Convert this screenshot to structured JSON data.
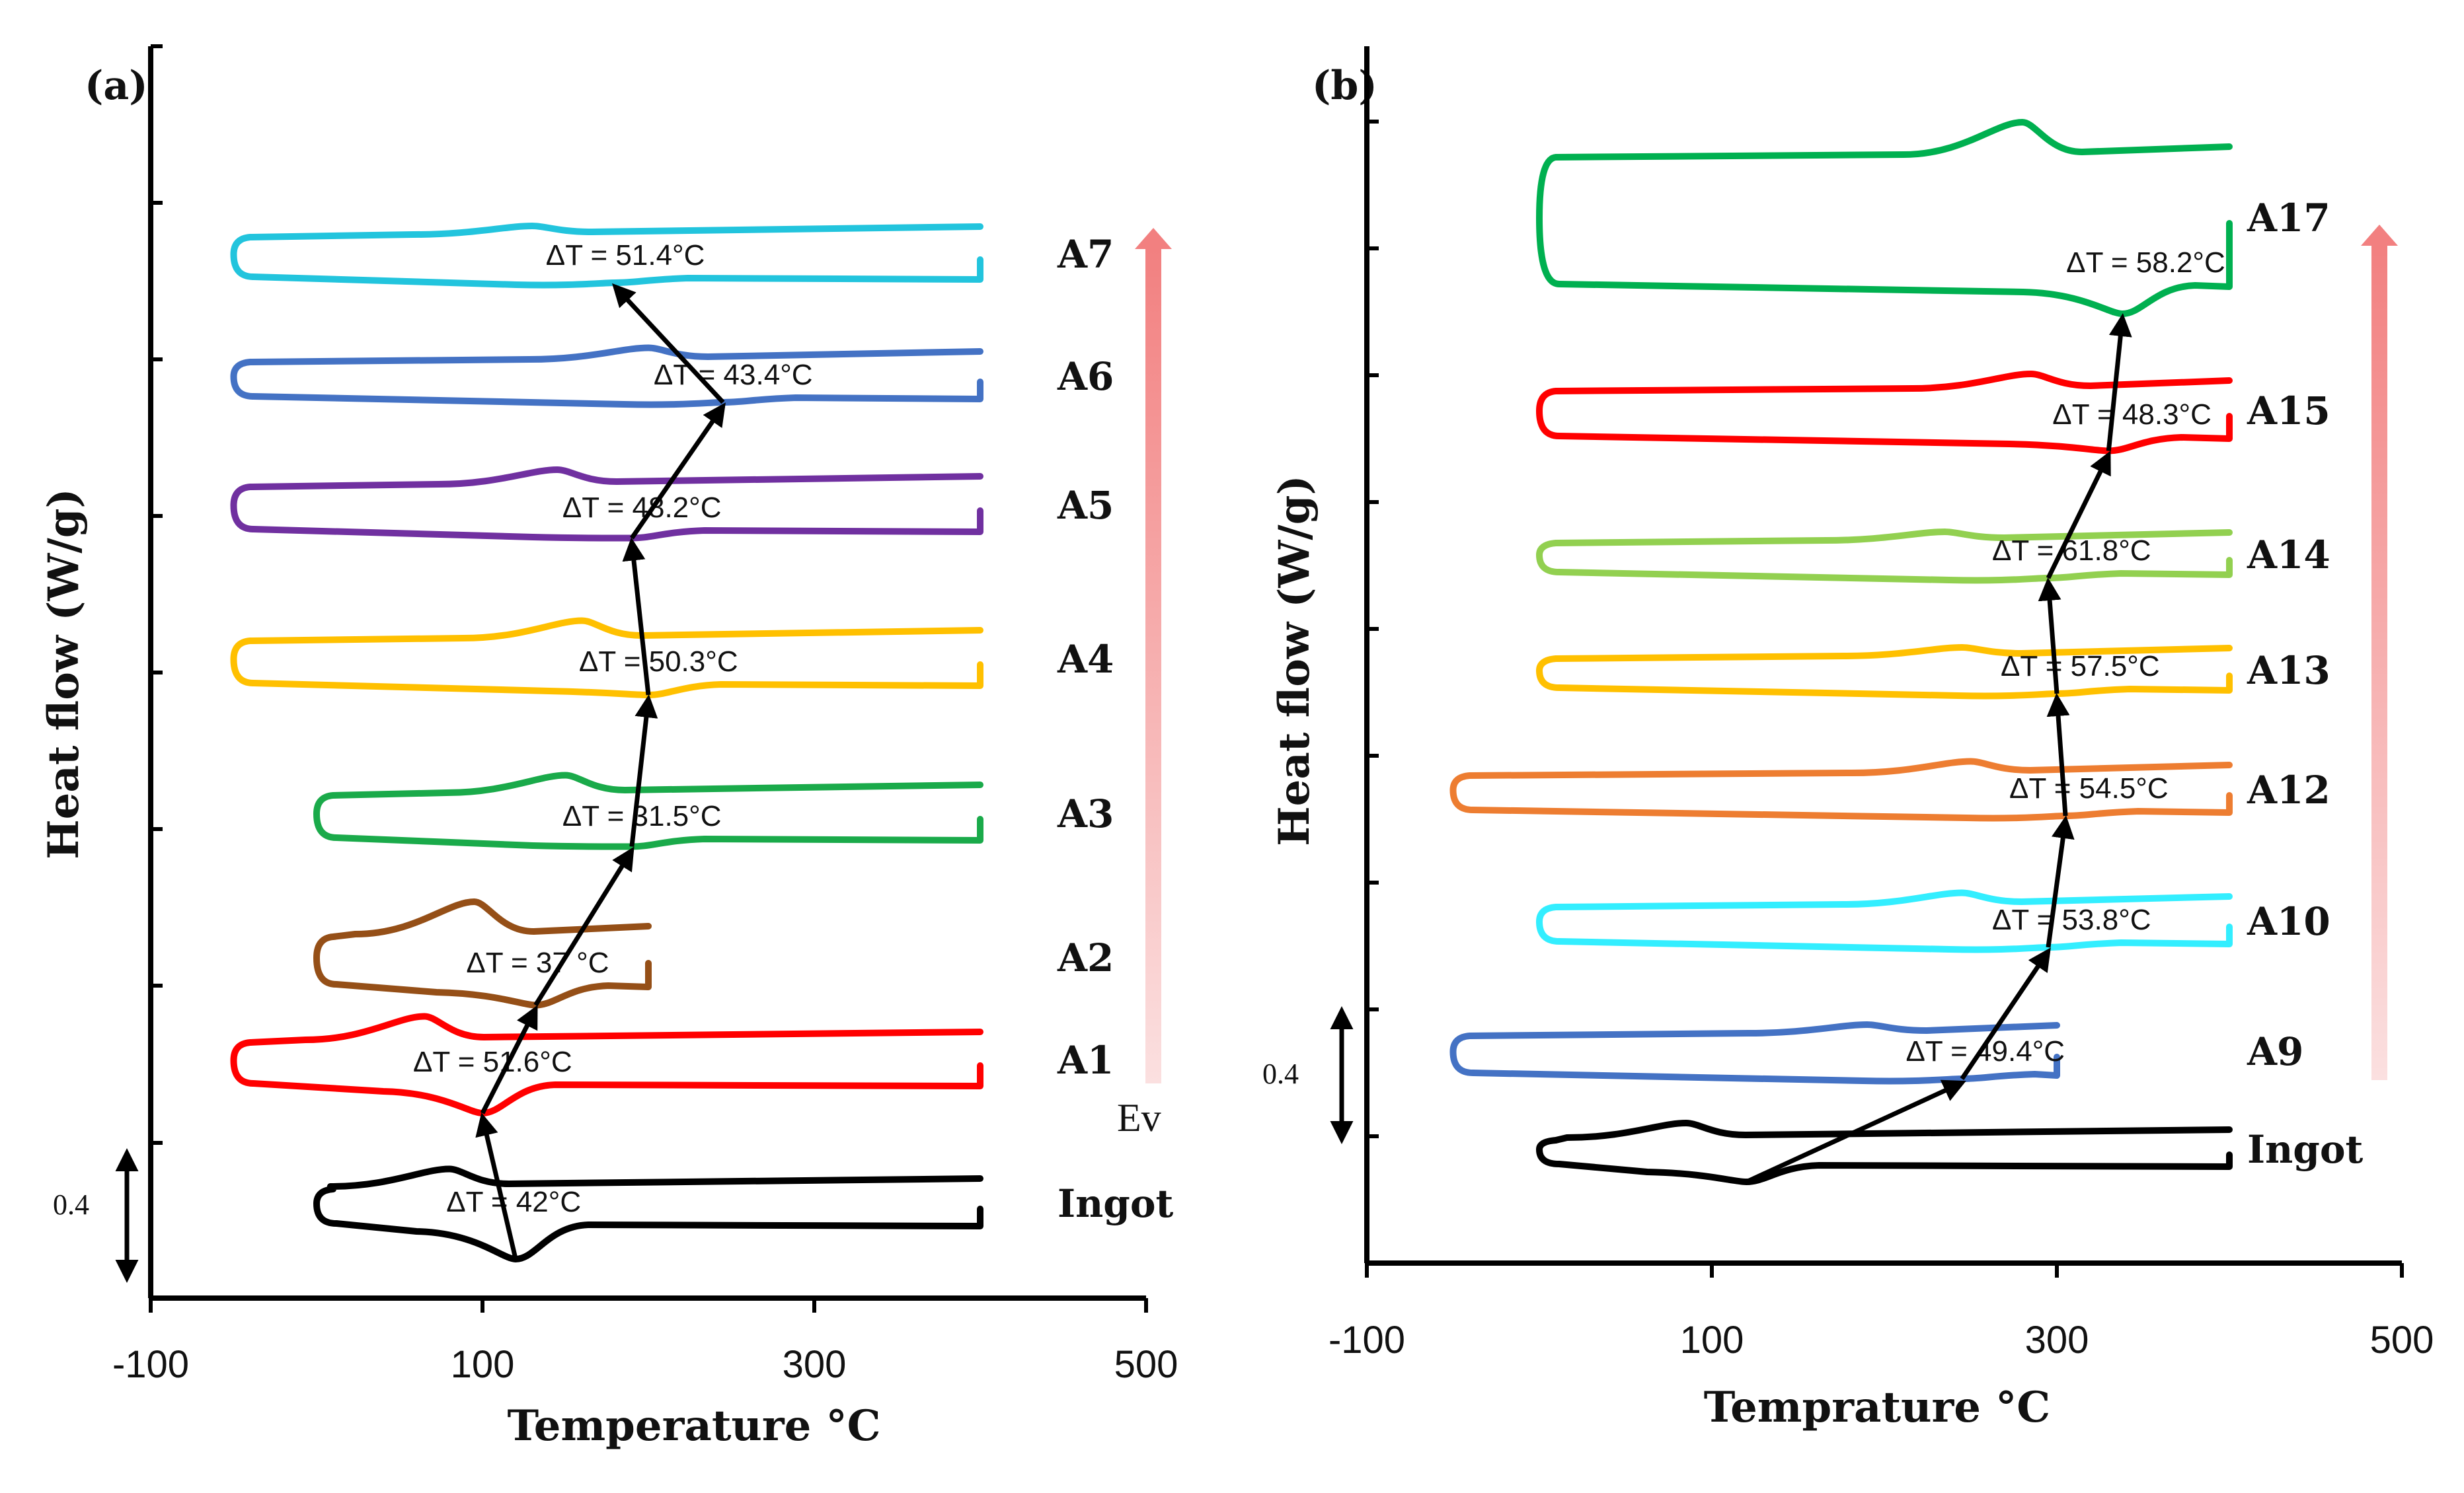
{
  "chart_data": [
    {
      "type": "line",
      "panel": "(a)",
      "xlabel": "Temperature °C",
      "ylabel": "Heat flow (W/g)",
      "xlim": [
        -100,
        500
      ],
      "xticks": [
        "-100",
        "100",
        "300",
        "500"
      ],
      "scale_bar": "0.4",
      "gradient_label": "Ev",
      "series": [
        {
          "name": "Ingot",
          "color": "#000000",
          "x_start": 0,
          "x_end": 400,
          "peak_heat": 80,
          "peak_cool": 120,
          "delta_t": "ΔT = 42°C",
          "heat_amp": 0.25,
          "cool_amp": 0.6
        },
        {
          "name": "A1",
          "color": "#ff0000",
          "x_start": -50,
          "x_end": 400,
          "peak_heat": 65,
          "peak_cool": 100,
          "delta_t": "ΔT = 51.6°C",
          "heat_amp": 0.35,
          "cool_amp": 0.5
        },
        {
          "name": "A2",
          "color": "#954f17",
          "x_start": 0,
          "x_end": 200,
          "peak_heat": 95,
          "peak_cool": 132,
          "delta_t": "ΔT = 37 °C",
          "heat_amp": 0.5,
          "cool_amp": 0.35
        },
        {
          "name": "A3",
          "color": "#1aaa4a",
          "x_start": 0,
          "x_end": 400,
          "peak_heat": 150,
          "peak_cool": 190,
          "delta_t": "ΔT = 31.5°C",
          "heat_amp": 0.25,
          "cool_amp": 0.15
        },
        {
          "name": "A4",
          "color": "#ffc000",
          "x_start": -50,
          "x_end": 400,
          "peak_heat": 160,
          "peak_cool": 200,
          "delta_t": "ΔT = 50.3°C",
          "heat_amp": 0.25,
          "cool_amp": 0.2
        },
        {
          "name": "A5",
          "color": "#7030a0",
          "x_start": -50,
          "x_end": 400,
          "peak_heat": 145,
          "peak_cool": 190,
          "delta_t": "ΔT = 48.2°C",
          "heat_amp": 0.2,
          "cool_amp": 0.15
        },
        {
          "name": "A6",
          "color": "#4472c4",
          "x_start": -50,
          "x_end": 400,
          "peak_heat": 200,
          "peak_cool": 245,
          "delta_t": "ΔT = 43.4°C",
          "heat_amp": 0.15,
          "cool_amp": 0.1
        },
        {
          "name": "A7",
          "color": "#22c4dd",
          "x_start": -50,
          "x_end": 400,
          "peak_heat": 130,
          "peak_cool": 180,
          "delta_t": "ΔT = 51.4°C",
          "heat_amp": 0.1,
          "cool_amp": 0.1
        }
      ]
    },
    {
      "type": "line",
      "panel": "(b)",
      "xlabel": "Temprature °C",
      "ylabel": "Heat flow (W/g)",
      "xlim": [
        -100,
        500
      ],
      "xticks": [
        "-100",
        "100",
        "300",
        "500"
      ],
      "scale_bar": "0.4",
      "series": [
        {
          "name": "Ingot",
          "color": "#000000",
          "x_start": 0,
          "x_end": 400,
          "peak_heat": 85,
          "peak_cool": 120,
          "delta_t": "",
          "heat_amp": 0.2,
          "cool_amp": 0.3
        },
        {
          "name": "A9",
          "color": "#4472c4",
          "x_start": -50,
          "x_end": 300,
          "peak_heat": 190,
          "peak_cool": 245,
          "delta_t": "ΔT = 49.4°C",
          "heat_amp": 0.1,
          "cool_amp": 0.1
        },
        {
          "name": "A10",
          "color": "#33eeff",
          "x_start": 0,
          "x_end": 400,
          "peak_heat": 245,
          "peak_cool": 295,
          "delta_t": "ΔT = 53.8°C",
          "heat_amp": 0.15,
          "cool_amp": 0.1
        },
        {
          "name": "A12",
          "color": "#ed7d31",
          "x_start": -50,
          "x_end": 400,
          "peak_heat": 250,
          "peak_cool": 305,
          "delta_t": "ΔT = 54.5°C",
          "heat_amp": 0.15,
          "cool_amp": 0.1
        },
        {
          "name": "A13",
          "color": "#ffc000",
          "x_start": 0,
          "x_end": 400,
          "peak_heat": 245,
          "peak_cool": 300,
          "delta_t": "ΔT = 57.5°C",
          "heat_amp": 0.1,
          "cool_amp": 0.1
        },
        {
          "name": "A14",
          "color": "#92d050",
          "x_start": 0,
          "x_end": 400,
          "peak_heat": 235,
          "peak_cool": 295,
          "delta_t": "ΔT = 61.8°C",
          "heat_amp": 0.1,
          "cool_amp": 0.1
        },
        {
          "name": "A15",
          "color": "#ff0000",
          "x_start": 0,
          "x_end": 400,
          "peak_heat": 285,
          "peak_cool": 330,
          "delta_t": "ΔT = 48.3°C",
          "heat_amp": 0.2,
          "cool_amp": 0.25
        },
        {
          "name": "A17",
          "color": "#00b050",
          "x_start": 0,
          "x_end": 400,
          "peak_heat": 280,
          "peak_cool": 338,
          "delta_t": "ΔT = 58.2°C",
          "heat_amp": 0.5,
          "cool_amp": 0.5
        }
      ]
    }
  ]
}
